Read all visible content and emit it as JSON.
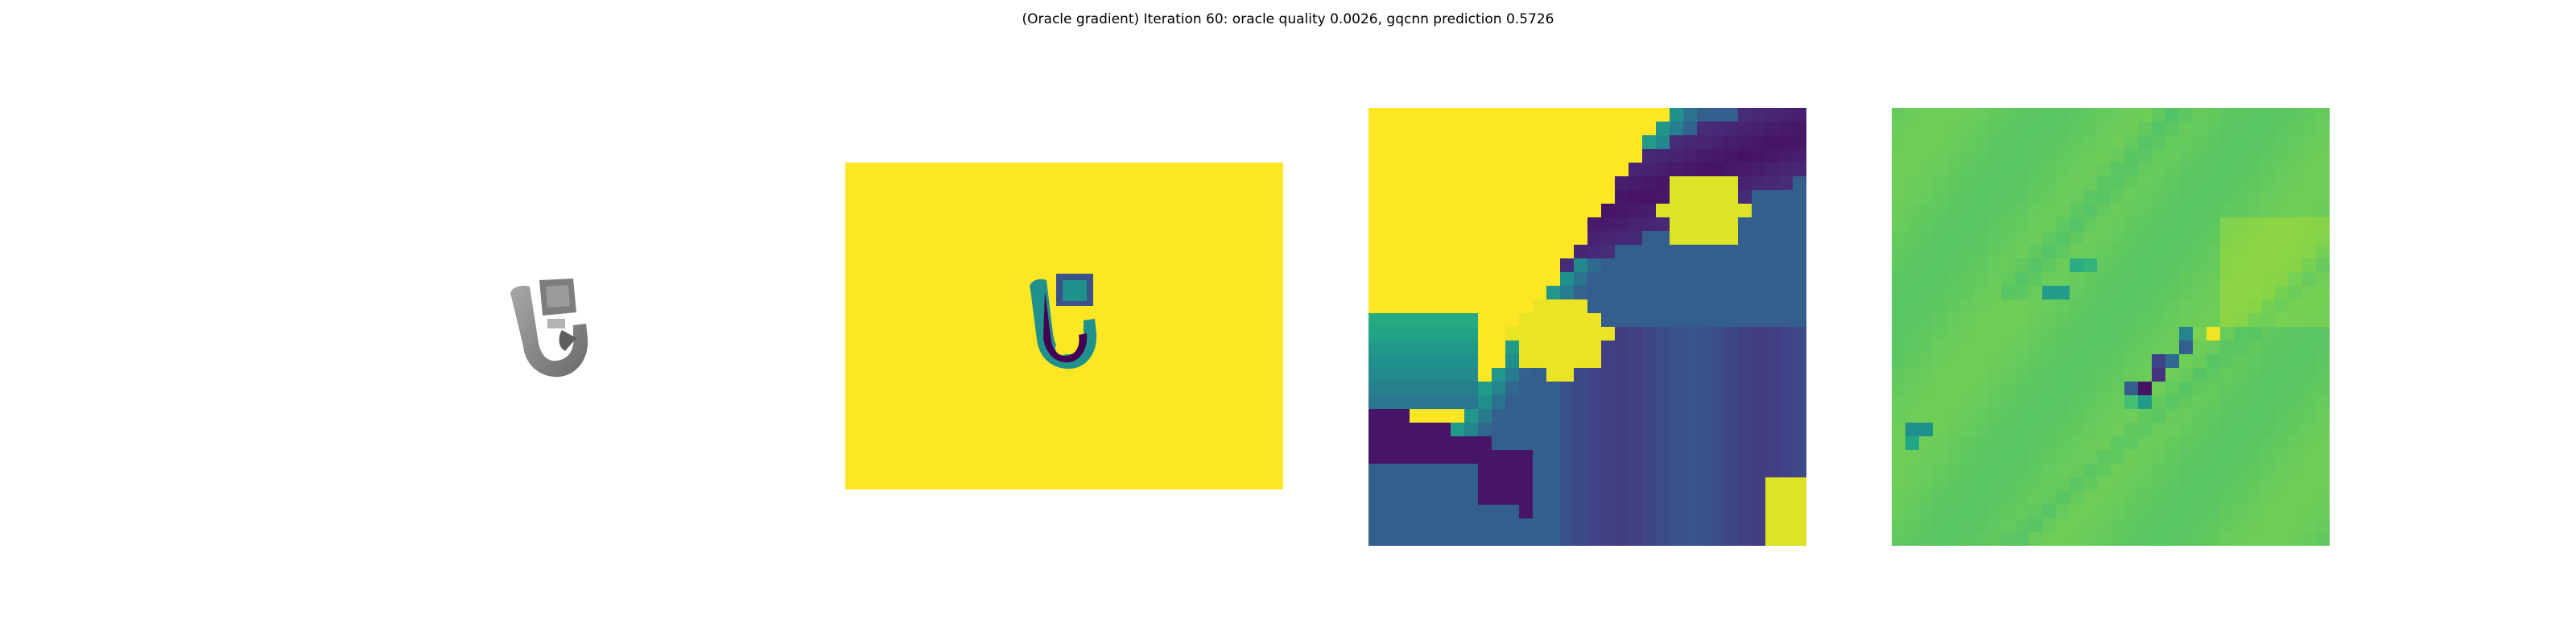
{
  "figure": {
    "title": "(Oracle gradient) Iteration 60: oracle quality 0.0026, gqcnn prediction 0.5726"
  },
  "colors": {
    "viridis_yellow": "#fde725",
    "viridis_dark": "#440154",
    "viridis_indigo": "#3b528b",
    "viridis_teal": "#21918c",
    "viridis_green": "#5ec962",
    "gradient_background": "#7ad151",
    "object_gray": "#8c8c8c"
  },
  "chart_data": [
    {
      "type": "heatmap",
      "name": "rendered-object-image",
      "colormap": "gray",
      "axes": "off"
    },
    {
      "type": "heatmap",
      "name": "depth-image",
      "colormap": "viridis",
      "axes": "off"
    },
    {
      "type": "heatmap",
      "name": "depth-crop",
      "colormap": "viridis",
      "grid_size": 32,
      "axes": "off"
    },
    {
      "type": "heatmap",
      "name": "oracle-gradient",
      "colormap": "viridis",
      "grid_size": 32,
      "axes": "off"
    }
  ]
}
